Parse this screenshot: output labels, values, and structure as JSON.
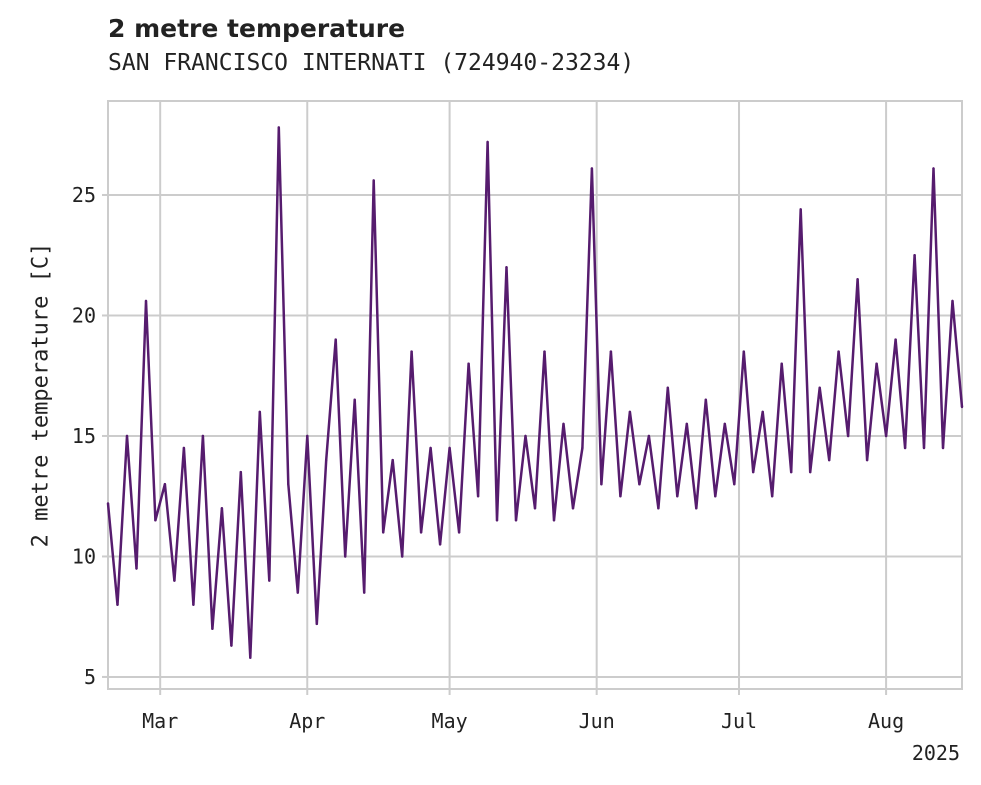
{
  "chart_data": {
    "type": "line",
    "title": "2 metre temperature",
    "subtitle": "SAN FRANCISCO INTERNATI (724940-23234)",
    "ylabel": "2 metre temperature [C]",
    "xlabel": "",
    "ylim": [
      4.5,
      28.9
    ],
    "yticks": [
      5,
      10,
      15,
      20,
      25
    ],
    "xlim": [
      "2025-02-18",
      "2025-08-17"
    ],
    "xticks": [
      {
        "date": "2025-03-01",
        "label": "Mar"
      },
      {
        "date": "2025-04-01",
        "label": "Apr"
      },
      {
        "date": "2025-05-01",
        "label": "May"
      },
      {
        "date": "2025-06-01",
        "label": "Jun"
      },
      {
        "date": "2025-07-01",
        "label": "Jul"
      },
      {
        "date": "2025-08-01",
        "label": "Aug"
      }
    ],
    "x_offset_label": "2025",
    "grid": true,
    "line_color": "#561C6E",
    "series": [
      {
        "points": [
          [
            "2025-02-18",
            12.2
          ],
          [
            "2025-02-20",
            8.0
          ],
          [
            "2025-02-22",
            15.0
          ],
          [
            "2025-02-24",
            9.5
          ],
          [
            "2025-02-26",
            20.6
          ],
          [
            "2025-02-28",
            11.5
          ],
          [
            "2025-03-02",
            13.0
          ],
          [
            "2025-03-04",
            9.0
          ],
          [
            "2025-03-06",
            14.5
          ],
          [
            "2025-03-08",
            8.0
          ],
          [
            "2025-03-10",
            15.0
          ],
          [
            "2025-03-12",
            7.0
          ],
          [
            "2025-03-14",
            12.0
          ],
          [
            "2025-03-16",
            6.3
          ],
          [
            "2025-03-18",
            13.5
          ],
          [
            "2025-03-20",
            5.8
          ],
          [
            "2025-03-22",
            16.0
          ],
          [
            "2025-03-24",
            9.0
          ],
          [
            "2025-03-26",
            27.8
          ],
          [
            "2025-03-28",
            13.0
          ],
          [
            "2025-03-30",
            8.5
          ],
          [
            "2025-04-01",
            15.0
          ],
          [
            "2025-04-03",
            7.2
          ],
          [
            "2025-04-05",
            14.0
          ],
          [
            "2025-04-07",
            19.0
          ],
          [
            "2025-04-09",
            10.0
          ],
          [
            "2025-04-11",
            16.5
          ],
          [
            "2025-04-13",
            8.5
          ],
          [
            "2025-04-15",
            25.6
          ],
          [
            "2025-04-17",
            11.0
          ],
          [
            "2025-04-19",
            14.0
          ],
          [
            "2025-04-21",
            10.0
          ],
          [
            "2025-04-23",
            18.5
          ],
          [
            "2025-04-25",
            11.0
          ],
          [
            "2025-04-27",
            14.5
          ],
          [
            "2025-04-29",
            10.5
          ],
          [
            "2025-05-01",
            14.5
          ],
          [
            "2025-05-03",
            11.0
          ],
          [
            "2025-05-05",
            18.0
          ],
          [
            "2025-05-07",
            12.5
          ],
          [
            "2025-05-09",
            27.2
          ],
          [
            "2025-05-11",
            11.5
          ],
          [
            "2025-05-13",
            22.0
          ],
          [
            "2025-05-15",
            11.5
          ],
          [
            "2025-05-17",
            15.0
          ],
          [
            "2025-05-19",
            12.0
          ],
          [
            "2025-05-21",
            18.5
          ],
          [
            "2025-05-23",
            11.5
          ],
          [
            "2025-05-25",
            15.5
          ],
          [
            "2025-05-27",
            12.0
          ],
          [
            "2025-05-29",
            14.5
          ],
          [
            "2025-05-31",
            26.1
          ],
          [
            "2025-06-02",
            13.0
          ],
          [
            "2025-06-04",
            18.5
          ],
          [
            "2025-06-06",
            12.5
          ],
          [
            "2025-06-08",
            16.0
          ],
          [
            "2025-06-10",
            13.0
          ],
          [
            "2025-06-12",
            15.0
          ],
          [
            "2025-06-14",
            12.0
          ],
          [
            "2025-06-16",
            17.0
          ],
          [
            "2025-06-18",
            12.5
          ],
          [
            "2025-06-20",
            15.5
          ],
          [
            "2025-06-22",
            12.0
          ],
          [
            "2025-06-24",
            16.5
          ],
          [
            "2025-06-26",
            12.5
          ],
          [
            "2025-06-28",
            15.5
          ],
          [
            "2025-06-30",
            13.0
          ],
          [
            "2025-07-02",
            18.5
          ],
          [
            "2025-07-04",
            13.5
          ],
          [
            "2025-07-06",
            16.0
          ],
          [
            "2025-07-08",
            12.5
          ],
          [
            "2025-07-10",
            18.0
          ],
          [
            "2025-07-12",
            13.5
          ],
          [
            "2025-07-14",
            24.4
          ],
          [
            "2025-07-16",
            13.5
          ],
          [
            "2025-07-18",
            17.0
          ],
          [
            "2025-07-20",
            14.0
          ],
          [
            "2025-07-22",
            18.5
          ],
          [
            "2025-07-24",
            15.0
          ],
          [
            "2025-07-26",
            21.5
          ],
          [
            "2025-07-28",
            14.0
          ],
          [
            "2025-07-30",
            18.0
          ],
          [
            "2025-08-01",
            15.0
          ],
          [
            "2025-08-03",
            19.0
          ],
          [
            "2025-08-05",
            14.5
          ],
          [
            "2025-08-07",
            22.5
          ],
          [
            "2025-08-09",
            14.5
          ],
          [
            "2025-08-11",
            26.1
          ],
          [
            "2025-08-13",
            14.5
          ],
          [
            "2025-08-15",
            20.6
          ],
          [
            "2025-08-17",
            16.2
          ]
        ]
      }
    ]
  }
}
